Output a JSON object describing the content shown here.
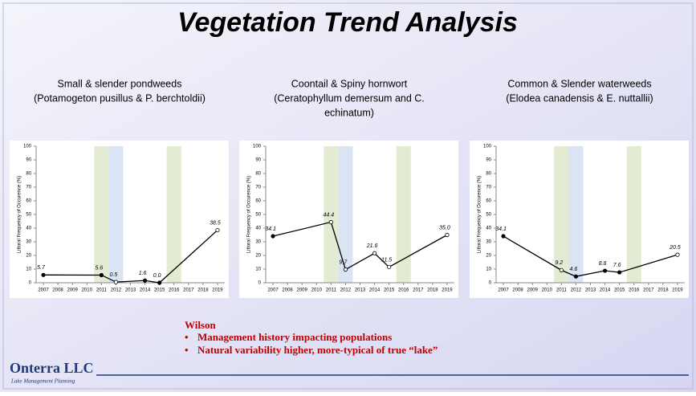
{
  "title": "Vegetation Trend Analysis",
  "chart_data": [
    {
      "type": "line",
      "title": [
        "Small & slender pondweeds",
        "(Potamogeton pusillus & P. berchtoldii)"
      ],
      "ylabel": "Littoral Frequency of Occurence (%)",
      "x": [
        2007,
        2011,
        2012,
        2014,
        2015,
        2019
      ],
      "series": [
        {
          "color": "#000000",
          "values": [
            5.7,
            5.6,
            0.5,
            1.6,
            0.0,
            38.5
          ],
          "value_labels": [
            "5.7",
            "5.6",
            "0.5",
            "1.6",
            "0.0",
            "38.5"
          ],
          "markers": [
            "filled",
            "filled",
            "open",
            "filled",
            "filled",
            "open"
          ]
        }
      ],
      "xlim": [
        2006.5,
        2019.5
      ],
      "xticks": [
        2007,
        2008,
        2009,
        2010,
        2011,
        2012,
        2013,
        2014,
        2015,
        2016,
        2017,
        2018,
        2019
      ],
      "ylim": [
        0,
        100
      ],
      "yticks": [
        0,
        10,
        20,
        30,
        40,
        50,
        60,
        70,
        80,
        90,
        100
      ],
      "bands": [
        {
          "x": 2011,
          "color": "#e3ebd2"
        },
        {
          "x": 2012,
          "color": "#dbe4f3"
        },
        {
          "x": 2016,
          "color": "#e3ebd2"
        }
      ]
    },
    {
      "type": "line",
      "title": [
        "Coontail & Spiny hornwort",
        "(Ceratophyllum demersum and C.",
        "echinatum)"
      ],
      "ylabel": "Littoral Frequency of Occurence (%)",
      "x": [
        2007,
        2011,
        2012,
        2014,
        2015,
        2019
      ],
      "series": [
        {
          "color": "#000000",
          "values": [
            34.1,
            44.4,
            9.7,
            21.6,
            11.5,
            35.0
          ],
          "value_labels": [
            "34.1",
            "44.4",
            "9.7",
            "21.6",
            "11.5",
            "35.0"
          ],
          "markers": [
            "filled",
            "open",
            "open",
            "open",
            "open",
            "open"
          ]
        }
      ],
      "xlim": [
        2006.5,
        2019.5
      ],
      "xticks": [
        2007,
        2008,
        2009,
        2010,
        2011,
        2012,
        2013,
        2014,
        2015,
        2016,
        2017,
        2018,
        2019
      ],
      "ylim": [
        0,
        100
      ],
      "yticks": [
        0,
        10,
        20,
        30,
        40,
        50,
        60,
        70,
        80,
        90,
        100
      ],
      "bands": [
        {
          "x": 2011,
          "color": "#e3ebd2"
        },
        {
          "x": 2012,
          "color": "#dbe4f3"
        },
        {
          "x": 2016,
          "color": "#e3ebd2"
        }
      ]
    },
    {
      "type": "line",
      "title": [
        "Common & Slender waterweeds",
        "(Elodea canadensis & E. nuttallii)"
      ],
      "ylabel": "Littoral Frequency of Occurence (%)",
      "x": [
        2007,
        2011,
        2012,
        2014,
        2015,
        2019
      ],
      "series": [
        {
          "color": "#000000",
          "values": [
            34.1,
            9.2,
            4.6,
            8.8,
            7.6,
            20.5
          ],
          "value_labels": [
            "34.1",
            "9.2",
            "4.6",
            "8.8",
            "7.6",
            "20.5"
          ],
          "markers": [
            "filled",
            "open",
            "filled",
            "filled",
            "filled",
            "open"
          ]
        }
      ],
      "xlim": [
        2006.5,
        2019.5
      ],
      "xticks": [
        2007,
        2008,
        2009,
        2010,
        2011,
        2012,
        2013,
        2014,
        2015,
        2016,
        2017,
        2018,
        2019
      ],
      "ylim": [
        0,
        100
      ],
      "yticks": [
        0,
        10,
        20,
        30,
        40,
        50,
        60,
        70,
        80,
        90,
        100
      ],
      "bands": [
        {
          "x": 2011,
          "color": "#e3ebd2"
        },
        {
          "x": 2012,
          "color": "#dbe4f3"
        },
        {
          "x": 2016,
          "color": "#e3ebd2"
        }
      ]
    }
  ],
  "notes": {
    "heading": "Wilson",
    "bullets": [
      "Management history impacting populations",
      "Natural variability higher, more-typical of true “lake”"
    ]
  },
  "logo": {
    "name": "Onterra LLC",
    "tagline": "Lake Management Planning"
  }
}
